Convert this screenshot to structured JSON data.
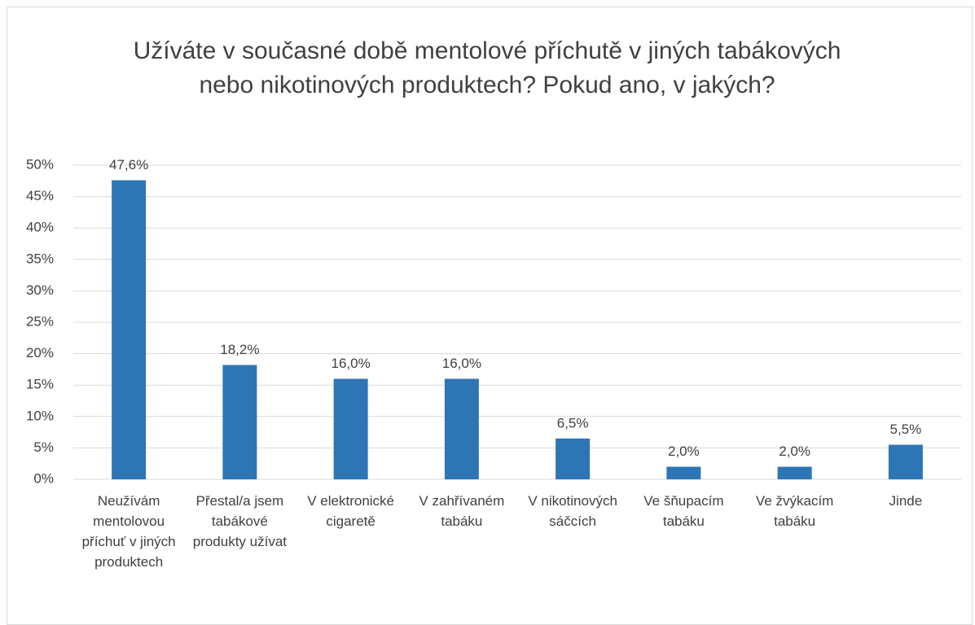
{
  "chart_data": {
    "type": "bar",
    "title": "Užíváte v současné době mentolové příchutě v jiných tabákových nebo nikotinových produktech? Pokud ano, v jakých?",
    "categories": [
      "Neužívám mentolovou příchuť v jiných produktech",
      "Přestal/a jsem tabákové produkty užívat",
      "V elektronické cigaretě",
      "V zahřívaném tabáku",
      "V nikotinových sáčcích",
      "Ve šňupacím tabáku",
      "Ve žvýkacím tabáku",
      "Jinde"
    ],
    "values": [
      47.6,
      18.2,
      16.0,
      16.0,
      6.5,
      2.0,
      2.0,
      5.5
    ],
    "value_labels": [
      "47,6%",
      "18,2%",
      "16,0%",
      "16,0%",
      "6,5%",
      "2,0%",
      "2,0%",
      "5,5%"
    ],
    "color": "#2e75b6",
    "ylim": [
      0,
      50
    ],
    "yticks": [
      {
        "value": 0,
        "label": "0%"
      },
      {
        "value": 5,
        "label": "5%"
      },
      {
        "value": 10,
        "label": "10%"
      },
      {
        "value": 15,
        "label": "15%"
      },
      {
        "value": 20,
        "label": "20%"
      },
      {
        "value": 25,
        "label": "25%"
      },
      {
        "value": 30,
        "label": "30%"
      },
      {
        "value": 35,
        "label": "35%"
      },
      {
        "value": 40,
        "label": "40%"
      },
      {
        "value": 45,
        "label": "45%"
      },
      {
        "value": 50,
        "label": "50%"
      }
    ],
    "grid": true
  }
}
